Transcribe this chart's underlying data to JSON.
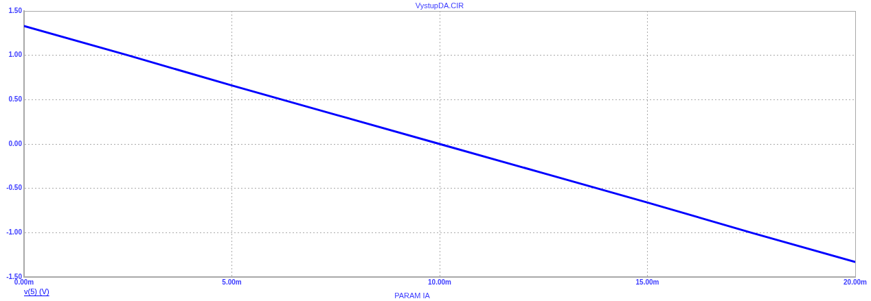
{
  "chart_data": {
    "type": "line",
    "title": "VystupDA.CIR",
    "xlabel": "PARAM IA",
    "x": [
      0,
      2.5,
      5,
      7.5,
      10,
      12.5,
      15,
      17.5,
      20
    ],
    "series": [
      {
        "name": "v(5) (V)",
        "color": "#0000ff",
        "values": [
          1.33,
          1.0,
          0.66,
          0.33,
          0.0,
          -0.33,
          -0.66,
          -1.0,
          -1.33
        ]
      }
    ],
    "xlim": [
      0,
      20
    ],
    "xticks": [
      {
        "value": 0,
        "label": "0.00m"
      },
      {
        "value": 5,
        "label": "5.00m"
      },
      {
        "value": 10,
        "label": "10.00m"
      },
      {
        "value": 15,
        "label": "15.00m"
      },
      {
        "value": 20,
        "label": "20.00m"
      }
    ],
    "ylim": [
      -1.5,
      1.5
    ],
    "yticks": [
      {
        "value": -1.5,
        "label": "-1.50"
      },
      {
        "value": -1,
        "label": "-1.00"
      },
      {
        "value": -0.5,
        "label": "-0.50"
      },
      {
        "value": 0,
        "label": "0.00"
      },
      {
        "value": 0.5,
        "label": "0.50"
      },
      {
        "value": 1,
        "label": "1.00"
      },
      {
        "value": 1.5,
        "label": "1.50"
      }
    ],
    "grid": true,
    "legend": "bottom left",
    "marker": "none",
    "line_style": "solid"
  }
}
